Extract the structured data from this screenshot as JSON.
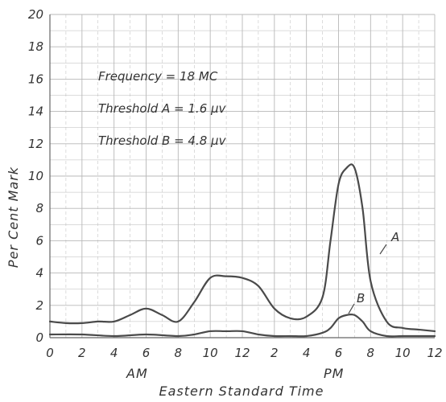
{
  "chart_data": {
    "type": "line",
    "title": "",
    "xlabel": "Eastern Standard Time",
    "ylabel": "Per Cent Mark",
    "ylim": [
      0,
      20
    ],
    "xlim": [
      0,
      24
    ],
    "grid": true,
    "x_ticks": [
      "0",
      "2",
      "4",
      "6",
      "8",
      "10",
      "12",
      "2",
      "4",
      "6",
      "8",
      "10",
      "12"
    ],
    "y_ticks": [
      "0",
      "2",
      "4",
      "6",
      "8",
      "10",
      "12",
      "14",
      "16",
      "18",
      "20"
    ],
    "period_labels": [
      "AM",
      "PM"
    ],
    "annotations": [
      "Frequency = 18 MC",
      "Threshold A = 1.6 μv",
      "Threshold B = 4.8 μv"
    ],
    "series": [
      {
        "name": "A",
        "x": [
          0,
          1,
          2,
          3,
          4,
          5,
          6,
          7,
          8,
          9,
          10,
          11,
          12,
          13,
          14,
          15,
          16,
          17,
          17.5,
          18,
          18.5,
          19,
          19.5,
          20,
          21,
          22,
          23,
          24
        ],
        "y": [
          1.0,
          0.9,
          0.9,
          1.0,
          1.0,
          1.4,
          1.8,
          1.4,
          1.0,
          2.2,
          3.7,
          3.8,
          3.7,
          3.2,
          1.8,
          1.2,
          1.3,
          2.5,
          6.0,
          9.5,
          10.5,
          10.5,
          8.0,
          3.5,
          1.0,
          0.6,
          0.5,
          0.4
        ]
      },
      {
        "name": "B",
        "x": [
          0,
          2,
          4,
          6,
          8,
          9,
          10,
          11,
          12,
          13,
          14,
          15,
          16,
          17,
          17.5,
          18,
          18.5,
          19,
          19.5,
          20,
          21,
          22,
          23,
          24
        ],
        "y": [
          0.2,
          0.2,
          0.1,
          0.2,
          0.1,
          0.2,
          0.4,
          0.4,
          0.4,
          0.2,
          0.1,
          0.1,
          0.1,
          0.3,
          0.6,
          1.2,
          1.4,
          1.4,
          1.0,
          0.4,
          0.1,
          0.1,
          0.1,
          0.1
        ]
      }
    ]
  }
}
